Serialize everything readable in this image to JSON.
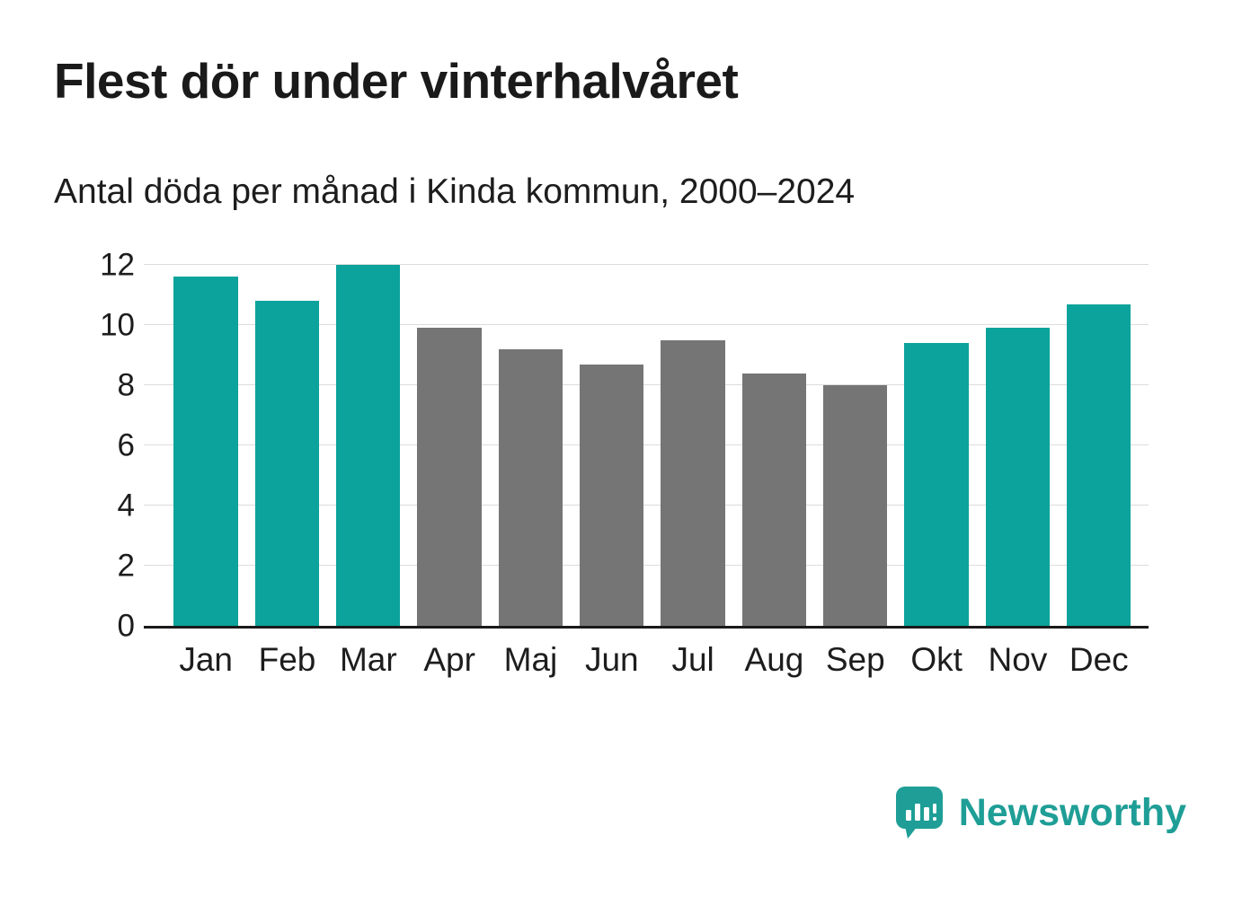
{
  "header": {
    "title": "Flest dör under vinterhalvåret",
    "subtitle": "Antal döda per månad i Kinda kommun, 2000–2024"
  },
  "chart_data": {
    "type": "bar",
    "title": "Flest dör under vinterhalvåret",
    "subtitle": "Antal döda per månad i Kinda kommun, 2000–2024",
    "categories": [
      "Jan",
      "Feb",
      "Mar",
      "Apr",
      "Maj",
      "Jun",
      "Jul",
      "Aug",
      "Sep",
      "Okt",
      "Nov",
      "Dec"
    ],
    "values": [
      11.6,
      10.8,
      12.0,
      9.9,
      9.2,
      8.7,
      9.5,
      8.4,
      8.0,
      9.4,
      9.9,
      10.7
    ],
    "color_keys": [
      "highlight",
      "highlight",
      "highlight",
      "muted",
      "muted",
      "muted",
      "muted",
      "muted",
      "muted",
      "highlight",
      "highlight",
      "highlight"
    ],
    "colors": {
      "highlight": "#0BA39B",
      "muted": "#757575"
    },
    "xlabel": "",
    "ylabel": "",
    "ylim": [
      0,
      12
    ],
    "yticks": [
      0,
      2,
      4,
      6,
      8,
      10,
      12
    ],
    "grid": "horizontal",
    "legend": "none"
  },
  "footer": {
    "brand": "Newsworthy",
    "brand_color": "#1E9E96",
    "logo_icon": "bar-chart-speech-bubble-icon"
  }
}
